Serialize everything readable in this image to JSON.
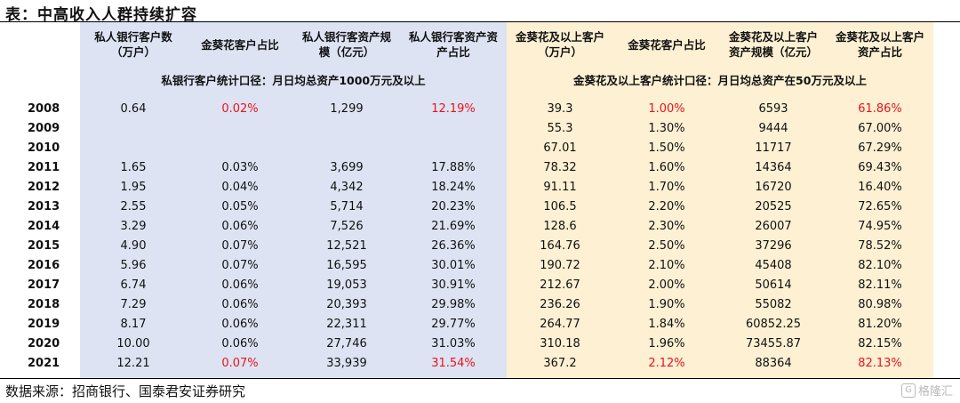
{
  "title": "表：中高收入人群持续扩容",
  "headers": [
    "私人银行客户数\n（万户）",
    "金葵花客户占比",
    "私人银行客资产规\n模（亿元）",
    "私人银行客资产资\n产占比",
    "金葵花及以上客户\n（万户）",
    "金葵花客户占比",
    "金葵花及以上客户\n资产规模（亿元）",
    "金葵花及以上客户\n资产占比"
  ],
  "notes": {
    "private_bank": "私银行客户统计口径：月日均总资产1000万元及以上",
    "sunflower": "金葵花及以上客户统计口径：月日均总资产在50万元及以上"
  },
  "rows": [
    {
      "year": "2008",
      "cells": [
        "0.64",
        "0.02%",
        "1,299",
        "12.19%",
        "39.3",
        "1.00%",
        "6593",
        "61.86%"
      ],
      "red": [
        1,
        3,
        5,
        7
      ]
    },
    {
      "year": "2009",
      "cells": [
        "",
        "",
        "",
        "",
        "55.3",
        "1.30%",
        "9444",
        "67.00%"
      ],
      "red": []
    },
    {
      "year": "2010",
      "cells": [
        "",
        "",
        "",
        "",
        "67.01",
        "1.50%",
        "11717",
        "67.29%"
      ],
      "red": []
    },
    {
      "year": "2011",
      "cells": [
        "1.65",
        "0.03%",
        "3,699",
        "17.88%",
        "78.32",
        "1.60%",
        "14364",
        "69.43%"
      ],
      "red": []
    },
    {
      "year": "2012",
      "cells": [
        "1.95",
        "0.04%",
        "4,342",
        "18.24%",
        "91.11",
        "1.70%",
        "16720",
        "16.40%"
      ],
      "red": []
    },
    {
      "year": "2013",
      "cells": [
        "2.55",
        "0.05%",
        "5,714",
        "20.23%",
        "106.5",
        "2.20%",
        "20525",
        "72.65%"
      ],
      "red": []
    },
    {
      "year": "2014",
      "cells": [
        "3.29",
        "0.06%",
        "7,526",
        "21.69%",
        "128.6",
        "2.30%",
        "26007",
        "74.95%"
      ],
      "red": []
    },
    {
      "year": "2015",
      "cells": [
        "4.90",
        "0.07%",
        "12,521",
        "26.36%",
        "164.76",
        "2.50%",
        "37296",
        "78.52%"
      ],
      "red": []
    },
    {
      "year": "2016",
      "cells": [
        "5.96",
        "0.07%",
        "16,595",
        "30.01%",
        "190.72",
        "2.10%",
        "45408",
        "82.10%"
      ],
      "red": []
    },
    {
      "year": "2017",
      "cells": [
        "6.74",
        "0.06%",
        "19,053",
        "30.91%",
        "212.67",
        "2.00%",
        "50614",
        "82.11%"
      ],
      "red": []
    },
    {
      "year": "2018",
      "cells": [
        "7.29",
        "0.06%",
        "20,393",
        "29.98%",
        "236.26",
        "1.90%",
        "55082",
        "80.98%"
      ],
      "red": []
    },
    {
      "year": "2019",
      "cells": [
        "8.17",
        "0.06%",
        "22,311",
        "29.77%",
        "264.77",
        "1.84%",
        "60852.25",
        "81.20%"
      ],
      "red": []
    },
    {
      "year": "2020",
      "cells": [
        "10.00",
        "0.06%",
        "27,746",
        "31.03%",
        "310.18",
        "1.96%",
        "73455.87",
        "82.15%"
      ],
      "red": []
    },
    {
      "year": "2021",
      "cells": [
        "12.21",
        "0.07%",
        "33,939",
        "31.54%",
        "367.2",
        "2.12%",
        "88364",
        "82.13%"
      ],
      "red": [
        1,
        3,
        5,
        7
      ]
    }
  ],
  "source": "数据来源：招商银行、国泰君安证券研究",
  "watermark": {
    "icon_name": "gelonghui-logo-icon",
    "text": "格隆汇"
  }
}
